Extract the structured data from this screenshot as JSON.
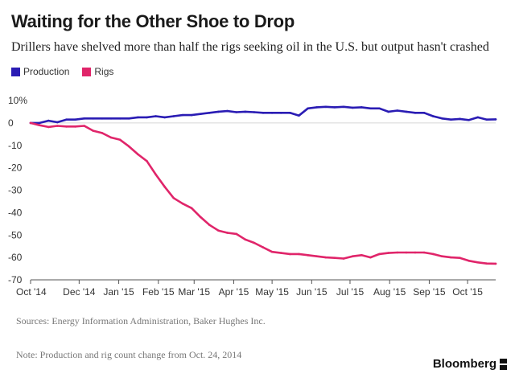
{
  "header": {
    "title": "Waiting for the Other Shoe to Drop",
    "subtitle": "Drillers have shelved more than half the rigs seeking oil in the U.S. but output hasn't crashed"
  },
  "footer": {
    "sources": "Sources: Energy Information Administration, Baker Hughes Inc.",
    "note": "Note: Production and rig count change from Oct. 24, 2014",
    "brand": "Bloomberg"
  },
  "chart_data": {
    "type": "line",
    "title": "Waiting for the Other Shoe to Drop",
    "subtitle": "Drillers have shelved more than half the rigs seeking oil in the U.S. but output hasn't crashed",
    "xlabel": "",
    "ylabel": "",
    "x_ticks": [
      {
        "label": "Oct '14",
        "date": "2014-10-24"
      },
      {
        "label": "Dec '14",
        "date": "2014-12-01"
      },
      {
        "label": "Jan '15",
        "date": "2015-01-01"
      },
      {
        "label": "Feb '15",
        "date": "2015-02-01"
      },
      {
        "label": "Mar '15",
        "date": "2015-03-01"
      },
      {
        "label": "Apr '15",
        "date": "2015-04-01"
      },
      {
        "label": "May '15",
        "date": "2015-05-01"
      },
      {
        "label": "Jun '15",
        "date": "2015-06-01"
      },
      {
        "label": "Jul '15",
        "date": "2015-07-01"
      },
      {
        "label": "Aug '15",
        "date": "2015-08-01"
      },
      {
        "label": "Sep '15",
        "date": "2015-09-01"
      },
      {
        "label": "Oct '15",
        "date": "2015-10-01"
      }
    ],
    "xlim": [
      "2014-10-24",
      "2015-10-23"
    ],
    "ylim": [
      -70,
      10
    ],
    "y_ticks": [
      10,
      0,
      -10,
      -20,
      -30,
      -40,
      -50,
      -60,
      -70
    ],
    "y_tick_labels": [
      "10%",
      "0",
      "-10",
      "-20",
      "-30",
      "-40",
      "-50",
      "-60",
      "-70"
    ],
    "grid": false,
    "legend_position": "top-left",
    "series": [
      {
        "name": "Production",
        "color": "#2a1cb4",
        "points": [
          [
            "2014-10-24",
            0
          ],
          [
            "2014-10-31",
            0
          ],
          [
            "2014-11-07",
            1
          ],
          [
            "2014-11-14",
            0.3
          ],
          [
            "2014-11-21",
            1.5
          ],
          [
            "2014-11-28",
            1.5
          ],
          [
            "2014-12-05",
            2
          ],
          [
            "2014-12-12",
            2
          ],
          [
            "2014-12-19",
            2
          ],
          [
            "2014-12-26",
            2
          ],
          [
            "2015-01-02",
            2
          ],
          [
            "2015-01-09",
            2
          ],
          [
            "2015-01-16",
            2.5
          ],
          [
            "2015-01-23",
            2.5
          ],
          [
            "2015-01-30",
            3
          ],
          [
            "2015-02-06",
            2.5
          ],
          [
            "2015-02-13",
            3
          ],
          [
            "2015-02-20",
            3.5
          ],
          [
            "2015-02-27",
            3.5
          ],
          [
            "2015-03-06",
            4
          ],
          [
            "2015-03-13",
            4.5
          ],
          [
            "2015-03-20",
            5
          ],
          [
            "2015-03-27",
            5.3
          ],
          [
            "2015-04-03",
            4.8
          ],
          [
            "2015-04-10",
            5
          ],
          [
            "2015-04-17",
            4.8
          ],
          [
            "2015-04-24",
            4.5
          ],
          [
            "2015-05-01",
            4.5
          ],
          [
            "2015-05-08",
            4.5
          ],
          [
            "2015-05-15",
            4.5
          ],
          [
            "2015-05-22",
            3.3
          ],
          [
            "2015-05-29",
            6.5
          ],
          [
            "2015-06-05",
            7
          ],
          [
            "2015-06-12",
            7.2
          ],
          [
            "2015-06-19",
            7
          ],
          [
            "2015-06-26",
            7.2
          ],
          [
            "2015-07-03",
            6.8
          ],
          [
            "2015-07-10",
            7
          ],
          [
            "2015-07-17",
            6.5
          ],
          [
            "2015-07-24",
            6.5
          ],
          [
            "2015-07-31",
            5
          ],
          [
            "2015-08-07",
            5.5
          ],
          [
            "2015-08-14",
            5
          ],
          [
            "2015-08-21",
            4.5
          ],
          [
            "2015-08-28",
            4.5
          ],
          [
            "2015-09-04",
            3
          ],
          [
            "2015-09-11",
            2
          ],
          [
            "2015-09-18",
            1.5
          ],
          [
            "2015-09-25",
            1.8
          ],
          [
            "2015-10-02",
            1.3
          ],
          [
            "2015-10-09",
            2.5
          ],
          [
            "2015-10-16",
            1.5
          ],
          [
            "2015-10-23",
            1.6
          ]
        ]
      },
      {
        "name": "Rigs",
        "color": "#e0256a",
        "points": [
          [
            "2014-10-24",
            0
          ],
          [
            "2014-10-31",
            -1
          ],
          [
            "2014-11-07",
            -1.8
          ],
          [
            "2014-11-14",
            -1.3
          ],
          [
            "2014-11-21",
            -1.6
          ],
          [
            "2014-11-28",
            -1.6
          ],
          [
            "2014-12-05",
            -1.3
          ],
          [
            "2014-12-12",
            -3.5
          ],
          [
            "2014-12-19",
            -4.5
          ],
          [
            "2014-12-26",
            -6.5
          ],
          [
            "2015-01-02",
            -7.5
          ],
          [
            "2015-01-09",
            -10.5
          ],
          [
            "2015-01-16",
            -14
          ],
          [
            "2015-01-23",
            -17
          ],
          [
            "2015-01-30",
            -23
          ],
          [
            "2015-02-06",
            -28.5
          ],
          [
            "2015-02-13",
            -33.5
          ],
          [
            "2015-02-20",
            -36
          ],
          [
            "2015-02-27",
            -38
          ],
          [
            "2015-03-06",
            -42
          ],
          [
            "2015-03-13",
            -45.5
          ],
          [
            "2015-03-20",
            -48
          ],
          [
            "2015-03-27",
            -49
          ],
          [
            "2015-04-03",
            -49.5
          ],
          [
            "2015-04-10",
            -52
          ],
          [
            "2015-04-17",
            -53.5
          ],
          [
            "2015-04-24",
            -55.5
          ],
          [
            "2015-05-01",
            -57.5
          ],
          [
            "2015-05-08",
            -58
          ],
          [
            "2015-05-15",
            -58.5
          ],
          [
            "2015-05-22",
            -58.5
          ],
          [
            "2015-05-29",
            -59
          ],
          [
            "2015-06-05",
            -59.5
          ],
          [
            "2015-06-12",
            -60
          ],
          [
            "2015-06-19",
            -60.2
          ],
          [
            "2015-06-26",
            -60.5
          ],
          [
            "2015-07-03",
            -59.5
          ],
          [
            "2015-07-10",
            -59
          ],
          [
            "2015-07-17",
            -60
          ],
          [
            "2015-07-24",
            -58.5
          ],
          [
            "2015-07-31",
            -58
          ],
          [
            "2015-08-07",
            -57.8
          ],
          [
            "2015-08-14",
            -57.8
          ],
          [
            "2015-08-21",
            -57.8
          ],
          [
            "2015-08-28",
            -57.8
          ],
          [
            "2015-09-04",
            -58.5
          ],
          [
            "2015-09-11",
            -59.5
          ],
          [
            "2015-09-18",
            -60
          ],
          [
            "2015-09-25",
            -60.2
          ],
          [
            "2015-10-02",
            -61.5
          ],
          [
            "2015-10-09",
            -62.2
          ],
          [
            "2015-10-16",
            -62.7
          ],
          [
            "2015-10-23",
            -62.8
          ]
        ]
      }
    ]
  }
}
